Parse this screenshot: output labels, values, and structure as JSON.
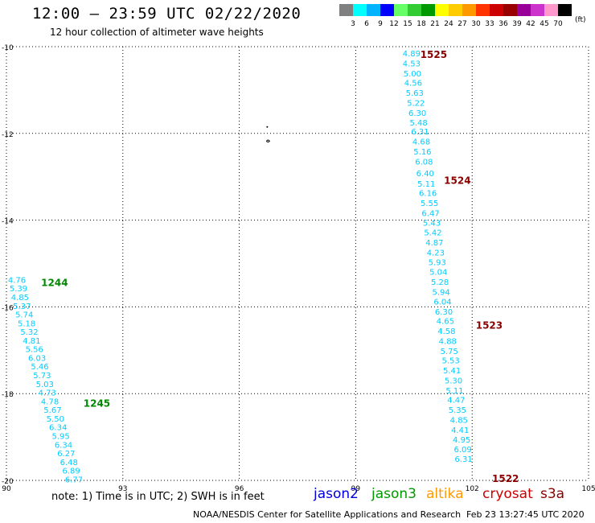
{
  "header": {
    "title": "12:00 — 23:59 UTC 02/22/2020",
    "subtitle": "12 hour collection of altimeter wave heights"
  },
  "legend": {
    "unit": "(ft)",
    "bins": [
      {
        "color": "#808080",
        "label": "3"
      },
      {
        "color": "#00ffff",
        "label": "6"
      },
      {
        "color": "#00b4ff",
        "label": "9"
      },
      {
        "color": "#0000ff",
        "label": "12"
      },
      {
        "color": "#66ff66",
        "label": "15"
      },
      {
        "color": "#33cc33",
        "label": "18"
      },
      {
        "color": "#009900",
        "label": "21"
      },
      {
        "color": "#ffff00",
        "label": "24"
      },
      {
        "color": "#ffcc00",
        "label": "27"
      },
      {
        "color": "#ff9900",
        "label": "30"
      },
      {
        "color": "#ff3300",
        "label": "33"
      },
      {
        "color": "#cc0000",
        "label": "36"
      },
      {
        "color": "#990000",
        "label": "39"
      },
      {
        "color": "#990099",
        "label": "42"
      },
      {
        "color": "#cc33cc",
        "label": "45"
      },
      {
        "color": "#ff99cc",
        "label": "70"
      },
      {
        "color": "#000000",
        "label": ""
      }
    ]
  },
  "map": {
    "lon_ticks": [
      "90",
      "93",
      "96",
      "99",
      "102",
      "105"
    ],
    "lat_ticks": [
      "-10",
      "-12",
      "-14",
      "-16",
      "-18",
      "-20"
    ],
    "lon_range": [
      90,
      105
    ],
    "lat_range": [
      -10,
      -20
    ],
    "grid": true,
    "tracks": [
      {
        "color": "#00ccff",
        "points": [
          {
            "lon": 100.44,
            "lat": -10.15,
            "v": "4.89"
          },
          {
            "lon": 100.44,
            "lat": -10.38,
            "v": "4.53"
          },
          {
            "lon": 100.46,
            "lat": -10.61,
            "v": "5.00"
          },
          {
            "lon": 100.48,
            "lat": -10.83,
            "v": "4.56"
          },
          {
            "lon": 100.52,
            "lat": -11.06,
            "v": "5.63"
          },
          {
            "lon": 100.55,
            "lat": -11.29,
            "v": "5.22"
          },
          {
            "lon": 100.59,
            "lat": -11.52,
            "v": "6.30"
          },
          {
            "lon": 100.62,
            "lat": -11.74,
            "v": "5.48"
          },
          {
            "lon": 100.66,
            "lat": -11.95,
            "v": "6.31"
          },
          {
            "lon": 100.69,
            "lat": -12.18,
            "v": "4.68"
          },
          {
            "lon": 100.72,
            "lat": -12.41,
            "v": "5.16"
          },
          {
            "lon": 100.76,
            "lat": -12.64,
            "v": "6.08"
          },
          {
            "lon": 100.79,
            "lat": -12.91,
            "v": "6.40"
          },
          {
            "lon": 100.82,
            "lat": -13.15,
            "v": "5.11"
          },
          {
            "lon": 100.86,
            "lat": -13.37,
            "v": "6.16"
          },
          {
            "lon": 100.9,
            "lat": -13.6,
            "v": "5.55"
          },
          {
            "lon": 100.93,
            "lat": -13.83,
            "v": "6.47"
          },
          {
            "lon": 100.96,
            "lat": -14.05,
            "v": "5.43"
          },
          {
            "lon": 100.99,
            "lat": -14.28,
            "v": "5.42"
          },
          {
            "lon": 101.03,
            "lat": -14.51,
            "v": "4.87"
          },
          {
            "lon": 101.06,
            "lat": -14.74,
            "v": "4.23"
          },
          {
            "lon": 101.1,
            "lat": -14.96,
            "v": "5.93"
          },
          {
            "lon": 101.13,
            "lat": -15.19,
            "v": "5.04"
          },
          {
            "lon": 101.17,
            "lat": -15.42,
            "v": "5.28"
          },
          {
            "lon": 101.2,
            "lat": -15.65,
            "v": "5.94"
          },
          {
            "lon": 101.24,
            "lat": -15.87,
            "v": "6.04"
          },
          {
            "lon": 101.27,
            "lat": -16.1,
            "v": "6.30"
          },
          {
            "lon": 101.31,
            "lat": -16.32,
            "v": "4.65"
          },
          {
            "lon": 101.34,
            "lat": -16.55,
            "v": "4.58"
          },
          {
            "lon": 101.37,
            "lat": -16.78,
            "v": "4.88"
          },
          {
            "lon": 101.41,
            "lat": -17.01,
            "v": "5.75"
          },
          {
            "lon": 101.45,
            "lat": -17.23,
            "v": "5.53"
          },
          {
            "lon": 101.48,
            "lat": -17.46,
            "v": "5.41"
          },
          {
            "lon": 101.52,
            "lat": -17.69,
            "v": "5.30"
          },
          {
            "lon": 101.55,
            "lat": -17.92,
            "v": "5.11"
          },
          {
            "lon": 101.59,
            "lat": -18.14,
            "v": "4.47"
          },
          {
            "lon": 101.62,
            "lat": -18.37,
            "v": "5.35"
          },
          {
            "lon": 101.66,
            "lat": -18.6,
            "v": "4.85"
          },
          {
            "lon": 101.69,
            "lat": -18.83,
            "v": "4.41"
          },
          {
            "lon": 101.73,
            "lat": -19.05,
            "v": "4.95"
          },
          {
            "lon": 101.76,
            "lat": -19.28,
            "v": "6.09"
          },
          {
            "lon": 101.78,
            "lat": -19.5,
            "v": "6.31"
          }
        ]
      },
      {
        "color": "#00ccff",
        "points": [
          {
            "lon": 90.27,
            "lat": -15.37,
            "v": "4.76"
          },
          {
            "lon": 90.31,
            "lat": -15.57,
            "v": "5.39"
          },
          {
            "lon": 90.35,
            "lat": -15.77,
            "v": "4.85"
          },
          {
            "lon": 90.4,
            "lat": -15.97,
            "v": "5.37"
          },
          {
            "lon": 90.46,
            "lat": -16.17,
            "v": "5.74"
          },
          {
            "lon": 90.52,
            "lat": -16.37,
            "v": "5.18"
          },
          {
            "lon": 90.59,
            "lat": -16.57,
            "v": "5.32"
          },
          {
            "lon": 90.65,
            "lat": -16.77,
            "v": "4.81"
          },
          {
            "lon": 90.72,
            "lat": -16.97,
            "v": "5.56"
          },
          {
            "lon": 90.79,
            "lat": -17.17,
            "v": "6.03"
          },
          {
            "lon": 90.86,
            "lat": -17.37,
            "v": "5.46"
          },
          {
            "lon": 90.92,
            "lat": -17.57,
            "v": "5.73"
          },
          {
            "lon": 90.99,
            "lat": -17.77,
            "v": "5.03"
          },
          {
            "lon": 91.05,
            "lat": -17.97,
            "v": "4.73"
          },
          {
            "lon": 91.12,
            "lat": -18.17,
            "v": "4.78"
          },
          {
            "lon": 91.19,
            "lat": -18.37,
            "v": "5.67"
          },
          {
            "lon": 91.26,
            "lat": -18.57,
            "v": "5.50"
          },
          {
            "lon": 91.33,
            "lat": -18.77,
            "v": "6.34"
          },
          {
            "lon": 91.4,
            "lat": -18.97,
            "v": "5.95"
          },
          {
            "lon": 91.47,
            "lat": -19.17,
            "v": "6.34"
          },
          {
            "lon": 91.54,
            "lat": -19.37,
            "v": "6.27"
          },
          {
            "lon": 91.61,
            "lat": -19.57,
            "v": "6.48"
          },
          {
            "lon": 91.67,
            "lat": -19.77,
            "v": "6.89"
          },
          {
            "lon": 91.74,
            "lat": -19.97,
            "v": "6.77"
          }
        ]
      }
    ],
    "time_labels": [
      {
        "lon": 101.01,
        "lat": -10.17,
        "text": "1525",
        "color": "#880000"
      },
      {
        "lon": 101.62,
        "lat": -13.07,
        "text": "1524",
        "color": "#880000"
      },
      {
        "lon": 102.44,
        "lat": -16.41,
        "text": "1523",
        "color": "#880000"
      },
      {
        "lon": 102.86,
        "lat": -19.94,
        "text": "1522",
        "color": "#880000"
      },
      {
        "lon": 91.24,
        "lat": -15.43,
        "text": "1244",
        "color": "#008800"
      },
      {
        "lon": 92.33,
        "lat": -18.21,
        "text": "1245",
        "color": "#008800"
      }
    ]
  },
  "footer": {
    "note": "note:  1) Time is in UTC;  2) SWH is in feet",
    "satellites": [
      {
        "name": "jason2",
        "color": "#0000dd"
      },
      {
        "name": "jason3",
        "color": "#009900"
      },
      {
        "name": "altika",
        "color": "#ff9900"
      },
      {
        "name": "cryosat",
        "color": "#cc0000"
      },
      {
        "name": "s3a",
        "color": "#880000"
      }
    ],
    "credit": "NOAA/NESDIS Center for Satellite Applications and Research",
    "timestamp": "Feb 23 13:27:45 UTC 2020"
  }
}
